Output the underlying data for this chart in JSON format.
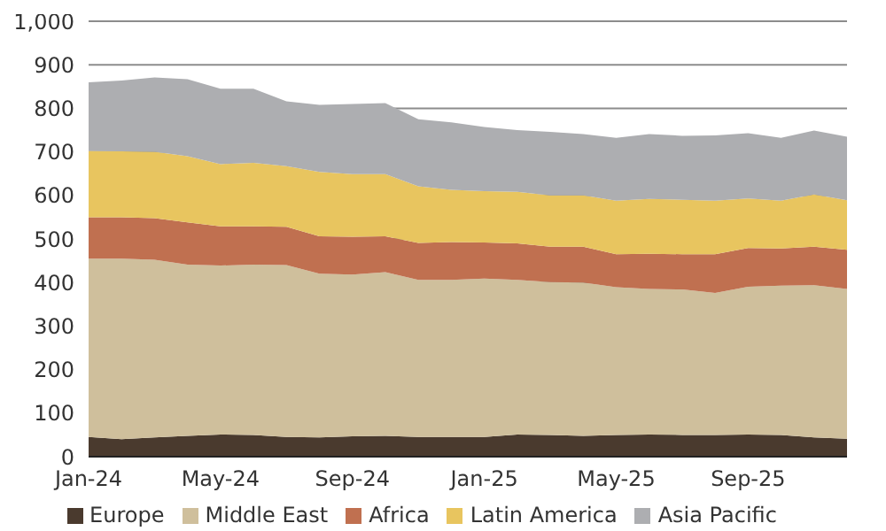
{
  "chart_data": {
    "type": "area",
    "stacked": true,
    "categories": [
      "Jan-24",
      null,
      null,
      null,
      "May-24",
      null,
      null,
      null,
      "Sep-24",
      null,
      null,
      null,
      "Jan-25",
      null,
      null,
      null,
      "May-25",
      null,
      null,
      null,
      "Sep-25",
      null,
      null,
      null
    ],
    "series": [
      {
        "name": "Europe",
        "color": "#4a3a2e",
        "values": [
          45,
          40,
          44,
          48,
          51,
          50,
          45,
          44,
          47,
          48,
          45,
          45,
          45,
          51,
          50,
          48,
          50,
          51,
          50,
          50,
          51,
          50,
          44,
          41
        ]
      },
      {
        "name": "Middle East",
        "color": "#cfbf9c",
        "values": [
          410,
          415,
          408,
          393,
          388,
          391,
          395,
          376,
          371,
          376,
          361,
          361,
          364,
          355,
          351,
          352,
          339,
          334,
          334,
          326,
          339,
          343,
          350,
          344
        ]
      },
      {
        "name": "Africa",
        "color": "#c07050",
        "values": [
          95,
          95,
          96,
          97,
          90,
          88,
          88,
          86,
          87,
          82,
          85,
          87,
          83,
          84,
          81,
          82,
          76,
          81,
          81,
          89,
          89,
          85,
          88,
          90
        ]
      },
      {
        "name": "Latin America",
        "color": "#e8c55f",
        "values": [
          152,
          151,
          152,
          152,
          143,
          146,
          139,
          148,
          144,
          143,
          130,
          120,
          118,
          118,
          118,
          118,
          123,
          126,
          125,
          123,
          114,
          110,
          120,
          114
        ]
      },
      {
        "name": "Asia Pacific",
        "color": "#adaeb1",
        "values": [
          158,
          163,
          171,
          177,
          173,
          170,
          149,
          154,
          161,
          163,
          154,
          155,
          147,
          142,
          146,
          141,
          144,
          149,
          147,
          150,
          150,
          144,
          147,
          146
        ]
      }
    ],
    "ylim": [
      0,
      1000
    ],
    "yticks": [
      0,
      100,
      200,
      300,
      400,
      500,
      600,
      700,
      800,
      900,
      {
        "value": 1000,
        "label": "1,000"
      }
    ],
    "grid": "y",
    "legend": "bottom"
  }
}
